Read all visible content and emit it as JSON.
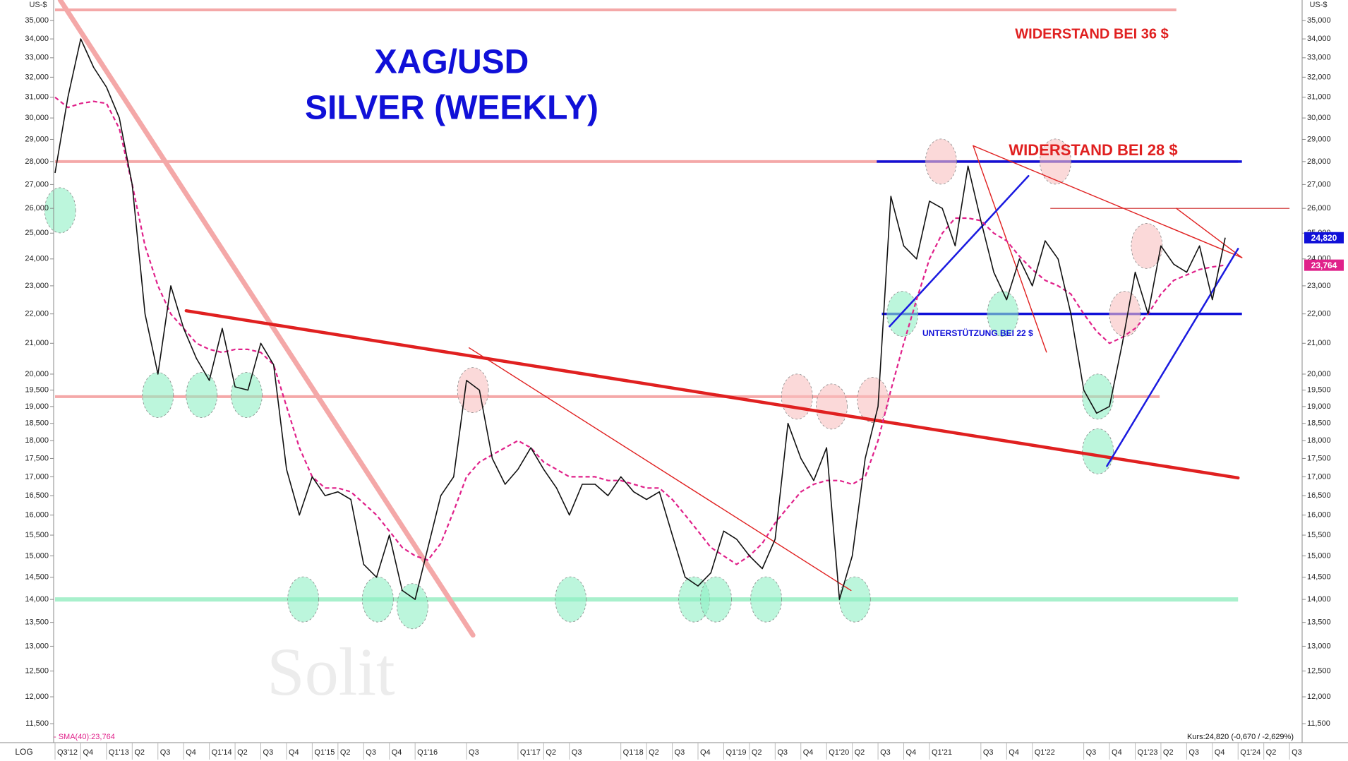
{
  "chart_data": {
    "type": "line",
    "title": "XAG/USD",
    "subtitle": "SILVER (WEEKLY)",
    "y_unit": "US-$",
    "scale_label": "LOG",
    "log_scale": true,
    "grid": false,
    "categories": [
      "Q3'12",
      null,
      "Q4",
      null,
      "Q1'13",
      null,
      "Q2",
      null,
      "Q3",
      null,
      "Q4",
      null,
      "Q1'14",
      null,
      "Q2",
      null,
      "Q3",
      null,
      "Q4",
      null,
      "Q1'15",
      null,
      "Q2",
      null,
      "Q3",
      null,
      "Q4",
      null,
      "Q1'16",
      null,
      null,
      null,
      "Q3",
      null,
      null,
      null,
      "Q1'17",
      null,
      "Q2",
      null,
      "Q3",
      null,
      null,
      null,
      "Q1'18",
      null,
      "Q2",
      null,
      "Q3",
      null,
      "Q4",
      null,
      "Q1'19",
      null,
      "Q2",
      null,
      "Q3",
      null,
      "Q4",
      null,
      "Q1'20",
      null,
      "Q2",
      null,
      "Q3",
      null,
      "Q4",
      null,
      "Q1'21",
      null,
      null,
      null,
      "Q3",
      null,
      "Q4",
      null,
      "Q1'22",
      null,
      null,
      null,
      "Q3",
      null,
      "Q4",
      null,
      "Q1'23",
      null,
      "Q2",
      null,
      "Q3",
      null,
      "Q4",
      null,
      "Q1'24",
      null,
      "Q2",
      null,
      "Q3",
      null
    ],
    "series": [
      {
        "name": "Kurs:24,820 (-0,670 / -2,629%)",
        "color": "#111111",
        "style": "solid",
        "values": [
          27500,
          31000,
          34000,
          32500,
          31500,
          30000,
          27000,
          22000,
          20000,
          23000,
          21500,
          20500,
          19800,
          21500,
          19600,
          19500,
          21000,
          20300,
          17200,
          16000,
          17000,
          16500,
          16600,
          16400,
          14800,
          14500,
          15500,
          14200,
          14000,
          15200,
          16500,
          17000,
          19800,
          19500,
          17500,
          16800,
          17200,
          17800,
          17200,
          16700,
          16000,
          16800,
          16800,
          16500,
          17000,
          16600,
          16400,
          16600,
          15500,
          14500,
          14300,
          14600,
          15600,
          15400,
          15000,
          14700,
          15400,
          18500,
          17500,
          16900,
          17800,
          14000,
          15000,
          17500,
          19000,
          26500,
          24500,
          24000,
          26300,
          26000,
          24500,
          27800,
          25500,
          23500,
          22500,
          24000,
          23000,
          24700,
          24000,
          22000,
          19500,
          18800,
          19000,
          21000,
          23500,
          22000,
          24500,
          23800,
          23500,
          24500,
          22500,
          24820,
          null,
          null,
          null,
          null,
          null,
          null
        ],
        "tag": {
          "value": 24820,
          "label": "24,820"
        }
      },
      {
        "name": "- SMA(40):23,764",
        "color": "#e0218a",
        "style": "dashed",
        "values": [
          31000,
          30500,
          30700,
          30800,
          30700,
          29500,
          27000,
          24500,
          23000,
          22000,
          21500,
          21000,
          20800,
          20700,
          20800,
          20800,
          20700,
          20300,
          19000,
          17800,
          17000,
          16700,
          16700,
          16600,
          16300,
          16000,
          15600,
          15200,
          15000,
          14900,
          15300,
          16100,
          17000,
          17400,
          17600,
          17800,
          18000,
          17800,
          17400,
          17200,
          17000,
          17000,
          17000,
          16900,
          16900,
          16800,
          16700,
          16700,
          16400,
          16000,
          15600,
          15200,
          15000,
          14800,
          15000,
          15300,
          15800,
          16200,
          16600,
          16800,
          16900,
          16900,
          16800,
          17000,
          18000,
          19500,
          21000,
          22500,
          24000,
          25000,
          25600,
          25600,
          25500,
          25000,
          24700,
          24100,
          23600,
          23200,
          23000,
          22700,
          22000,
          21400,
          21000,
          21200,
          21500,
          22000,
          22700,
          23200,
          23400,
          23600,
          23700,
          23764,
          null,
          null,
          null,
          null,
          null,
          null
        ],
        "tag": {
          "value": 23764,
          "label": "23,764"
        }
      }
    ],
    "ylim": [
      11160,
      36160
    ],
    "yticks": [
      {
        "value": 11500,
        "label": "11,500"
      },
      {
        "value": 12000,
        "label": "12,000"
      },
      {
        "value": 12500,
        "label": "12,500"
      },
      {
        "value": 13000,
        "label": "13,000"
      },
      {
        "value": 13500,
        "label": "13,500"
      },
      {
        "value": 14000,
        "label": "14,000"
      },
      {
        "value": 14500,
        "label": "14,500"
      },
      {
        "value": 15000,
        "label": "15,000"
      },
      {
        "value": 15500,
        "label": "15,500"
      },
      {
        "value": 16000,
        "label": "16,000"
      },
      {
        "value": 16500,
        "label": "16,500"
      },
      {
        "value": 17000,
        "label": "17,000"
      },
      {
        "value": 17500,
        "label": "17,500"
      },
      {
        "value": 18000,
        "label": "18,000"
      },
      {
        "value": 18500,
        "label": "18,500"
      },
      {
        "value": 19000,
        "label": "19,000"
      },
      {
        "value": 19500,
        "label": "19,500"
      },
      {
        "value": 20000,
        "label": "20,000"
      },
      {
        "value": 21000,
        "label": "21,000"
      },
      {
        "value": 22000,
        "label": "22,000"
      },
      {
        "value": 23000,
        "label": "23,000"
      },
      {
        "value": 24000,
        "label": "24,000"
      },
      {
        "value": 25000,
        "label": "25,000"
      },
      {
        "value": 26000,
        "label": "26,000"
      },
      {
        "value": 27000,
        "label": "27,000"
      },
      {
        "value": 28000,
        "label": "28,000"
      },
      {
        "value": 29000,
        "label": "29,000"
      },
      {
        "value": 30000,
        "label": "30,000"
      },
      {
        "value": 31000,
        "label": "31,000"
      },
      {
        "value": 32000,
        "label": "32,000"
      },
      {
        "value": 33000,
        "label": "33,000"
      },
      {
        "value": 34000,
        "label": "34,000"
      },
      {
        "value": 35000,
        "label": "35,000"
      }
    ],
    "levels": [
      {
        "value": 35600,
        "from": 0,
        "to": 87.2,
        "color": "#f4a8a8",
        "width": 4
      },
      {
        "value": 28000,
        "from": 0,
        "to": 92,
        "color": "#f4a8a8",
        "width": 4
      },
      {
        "value": 19300,
        "from": 0,
        "to": 85.9,
        "color": "#f4a8a8",
        "width": 4
      },
      {
        "value": 14000,
        "from": 0,
        "to": 92,
        "color": "#a8f0cc",
        "width": 6
      },
      {
        "value": 28000,
        "from": 63.9,
        "to": 92.3,
        "color": "#1010d8",
        "width": 3.5
      },
      {
        "value": 22000,
        "from": 64.3,
        "to": 92.3,
        "color": "#1010d8",
        "width": 3.5
      },
      {
        "value": 26000,
        "from": 77.4,
        "to": 96,
        "color": "#cc2222",
        "width": 1.2
      }
    ],
    "lines": [
      {
        "x": [
          0.4,
          32.5
        ],
        "values": [
          36160,
          13230
        ],
        "color": "#f4a8a8",
        "width": 7
      },
      {
        "x": [
          10.2,
          92
        ],
        "values": [
          22110,
          16970
        ],
        "color": "#e02020",
        "width": 4.5
      },
      {
        "x": [
          32.2,
          61.9
        ],
        "values": [
          20850,
          14200
        ],
        "color": "#e02020",
        "width": 1.4
      },
      {
        "x": [
          71.4,
          92.3
        ],
        "values": [
          28710,
          24050
        ],
        "color": "#e02020",
        "width": 1.4
      },
      {
        "x": [
          71.4,
          77.1
        ],
        "values": [
          28710,
          20710
        ],
        "color": "#e02020",
        "width": 1.4
      },
      {
        "x": [
          87.2,
          92.3
        ],
        "values": [
          26000,
          24050
        ],
        "color": "#e02020",
        "width": 1.4
      },
      {
        "x": [
          64.9,
          75.7
        ],
        "values": [
          21570,
          27370
        ],
        "color": "#1a1ae0",
        "width": 2.5
      },
      {
        "x": [
          81.8,
          92
        ],
        "values": [
          17290,
          24390
        ],
        "color": "#1a1ae0",
        "width": 2.5
      }
    ],
    "highlights": [
      {
        "x": 0.4,
        "value": 25920,
        "color": "#8ff0c4"
      },
      {
        "x": 8.0,
        "value": 19350,
        "color": "#8ff0c4"
      },
      {
        "x": 11.4,
        "value": 19350,
        "color": "#8ff0c4"
      },
      {
        "x": 14.9,
        "value": 19350,
        "color": "#8ff0c4"
      },
      {
        "x": 19.3,
        "value": 14000,
        "color": "#8ff0c4"
      },
      {
        "x": 25.1,
        "value": 14000,
        "color": "#8ff0c4"
      },
      {
        "x": 27.8,
        "value": 13850,
        "color": "#8ff0c4"
      },
      {
        "x": 40.1,
        "value": 14000,
        "color": "#8ff0c4"
      },
      {
        "x": 49.7,
        "value": 14000,
        "color": "#8ff0c4"
      },
      {
        "x": 51.4,
        "value": 14000,
        "color": "#8ff0c4"
      },
      {
        "x": 55.3,
        "value": 14000,
        "color": "#8ff0c4"
      },
      {
        "x": 62.2,
        "value": 14000,
        "color": "#8ff0c4"
      },
      {
        "x": 65.9,
        "value": 22000,
        "color": "#8ff0c4"
      },
      {
        "x": 73.7,
        "value": 22000,
        "color": "#8ff0c4"
      },
      {
        "x": 81.1,
        "value": 19300,
        "color": "#8ff0c4"
      },
      {
        "x": 81.1,
        "value": 17700,
        "color": "#8ff0c4"
      },
      {
        "x": 32.5,
        "value": 19500,
        "color": "#f8c0c0"
      },
      {
        "x": 57.7,
        "value": 19300,
        "color": "#f8c0c0"
      },
      {
        "x": 60.4,
        "value": 19000,
        "color": "#f8c0c0"
      },
      {
        "x": 63.6,
        "value": 19200,
        "color": "#f8c0c0"
      },
      {
        "x": 68.9,
        "value": 28000,
        "color": "#f8c0c0"
      },
      {
        "x": 77.8,
        "value": 28000,
        "color": "#f8c0c0"
      },
      {
        "x": 83.2,
        "value": 22000,
        "color": "#f8c0c0"
      },
      {
        "x": 84.9,
        "value": 24500,
        "color": "#f8c0c0"
      }
    ],
    "annotations": [
      "WIDERSTAND BEI 36 $",
      "WIDERSTAND BEI 28 $",
      "UNTERSTÜTZUNG BEI 22 $"
    ],
    "watermark": "Solit"
  }
}
